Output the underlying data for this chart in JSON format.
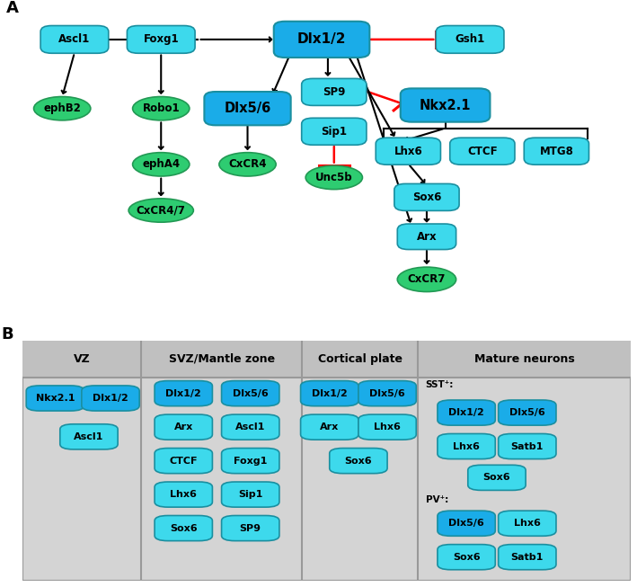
{
  "fig_width": 7.09,
  "fig_height": 6.53,
  "bg_color": "#ffffff",
  "CYAN_LIGHT": "#3DD9EC",
  "CYAN_MED": "#00BFFF",
  "CYAN_DARK": "#1AACE8",
  "GREEN_FILL": "#2ECC71",
  "GREEN_EDGE": "#229954",
  "TEXT_COLOR": "#000000",
  "panel_a_label": "A",
  "panel_b_label": "B",
  "table_headers": [
    "VZ",
    "SVZ/Mantle zone",
    "Cortical plate",
    "Mature neurons"
  ],
  "table_bg": "#D4D4D4",
  "table_hdr_bg": "#C0C0C0",
  "table_line": "#999999"
}
